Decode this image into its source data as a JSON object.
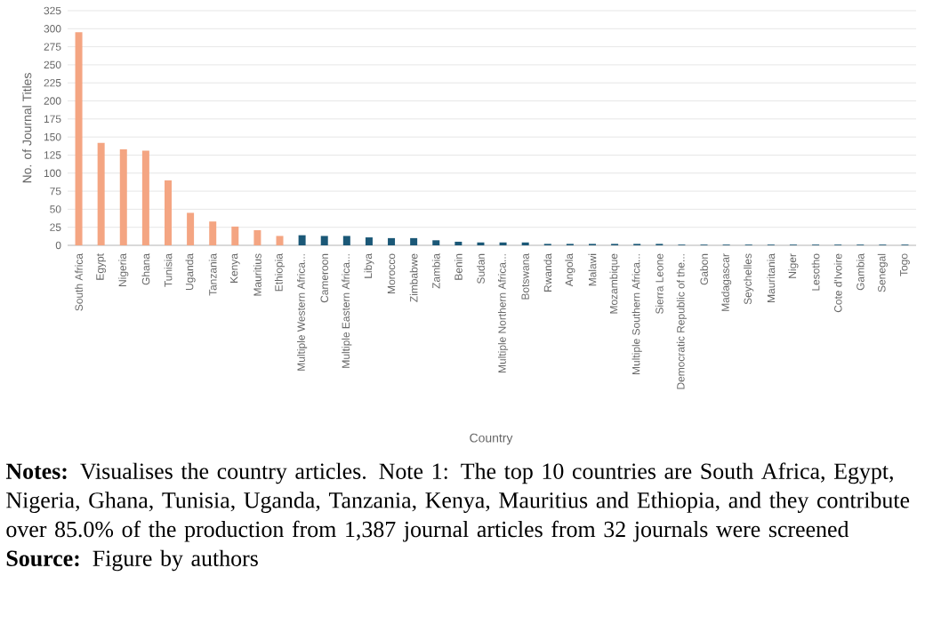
{
  "chart_data": {
    "type": "bar",
    "xlabel": "Country",
    "ylabel": "No. of Journal Titles",
    "categories": [
      "South Africa",
      "Egypt",
      "Nigeria",
      "Ghana",
      "Tunisia",
      "Uganda",
      "Tanzania",
      "Kenya",
      "Mauritius",
      "Ethiopia",
      "Multiple Western Africa...",
      "Cameroon",
      "Multiple Eastern Africa...",
      "Libya",
      "Morocco",
      "Zimbabwe",
      "Zambia",
      "Benin",
      "Sudan",
      "Multiple Northern Africa...",
      "Botswana",
      "Rwanda",
      "Angola",
      "Malawi",
      "Mozambique",
      "Multiple Southern Africa...",
      "Sierra Leone",
      "Democratic Republic of the...",
      "Gabon",
      "Madagascar",
      "Seychelles",
      "Mauritania",
      "Niger",
      "Lesotho",
      "Cote d'Ivoire",
      "Gambia",
      "Senegal",
      "Togo"
    ],
    "values": [
      295,
      142,
      133,
      131,
      90,
      45,
      33,
      26,
      21,
      13,
      14,
      13,
      13,
      11,
      10,
      10,
      7,
      5,
      4,
      4,
      4,
      2,
      2,
      2,
      2,
      2,
      2,
      1,
      1,
      1,
      1,
      1,
      1,
      1,
      1,
      1,
      1,
      1
    ],
    "colors": [
      "#f4a582",
      "#f4a582",
      "#f4a582",
      "#f4a582",
      "#f4a582",
      "#f4a582",
      "#f4a582",
      "#f4a582",
      "#f4a582",
      "#f4a582",
      "#1b5877",
      "#1b5877",
      "#1b5877",
      "#1b5877",
      "#1b5877",
      "#1b5877",
      "#1b5877",
      "#1b5877",
      "#1b5877",
      "#1b5877",
      "#1b5877",
      "#1b5877",
      "#1b5877",
      "#1b5877",
      "#1b5877",
      "#1b5877",
      "#1b5877",
      "#1b5877",
      "#1b5877",
      "#1b5877",
      "#1b5877",
      "#1b5877",
      "#1b5877",
      "#1b5877",
      "#1b5877",
      "#1b5877",
      "#1b5877",
      "#1b5877"
    ],
    "ylim": [
      0,
      325
    ],
    "yticks": [
      0,
      25,
      50,
      75,
      100,
      125,
      150,
      175,
      200,
      225,
      250,
      275,
      300,
      325
    ],
    "grid": "y",
    "annotations": [
      "**Notes:** Visualises the country articles. Note 1: The top 10 countries are South Africa, Egypt, Nigeria, Ghana, Tunisia, Uganda, Tanzania, Kenya, Mauritius and Ethiopia, and they contribute over 85.0% of the production from 1,387 journal articles from 32 journals were screened",
      "**Source:** Figure by authors"
    ]
  }
}
